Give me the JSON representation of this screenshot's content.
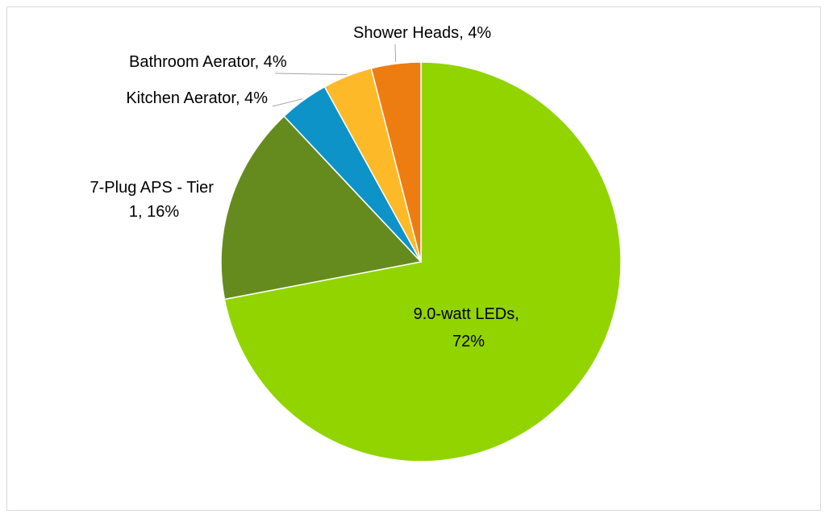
{
  "chart_data": {
    "type": "pie",
    "title": "",
    "slices": [
      {
        "label": "9.0-watt LEDs",
        "value": 72,
        "display": "72%",
        "color": "#92d400"
      },
      {
        "label": "7-Plug APS - Tier 1",
        "value": 16,
        "display": "16%",
        "color": "#658b1e"
      },
      {
        "label": "Kitchen Aerator",
        "value": 4,
        "display": "4%",
        "color": "#0e93c9"
      },
      {
        "label": "Bathroom Aerator",
        "value": 4,
        "display": "4%",
        "color": "#fdb927"
      },
      {
        "label": "Shower Heads",
        "value": 4,
        "display": "4%",
        "color": "#ee7d11"
      }
    ],
    "legend": false,
    "data_labels": "category and percent"
  }
}
